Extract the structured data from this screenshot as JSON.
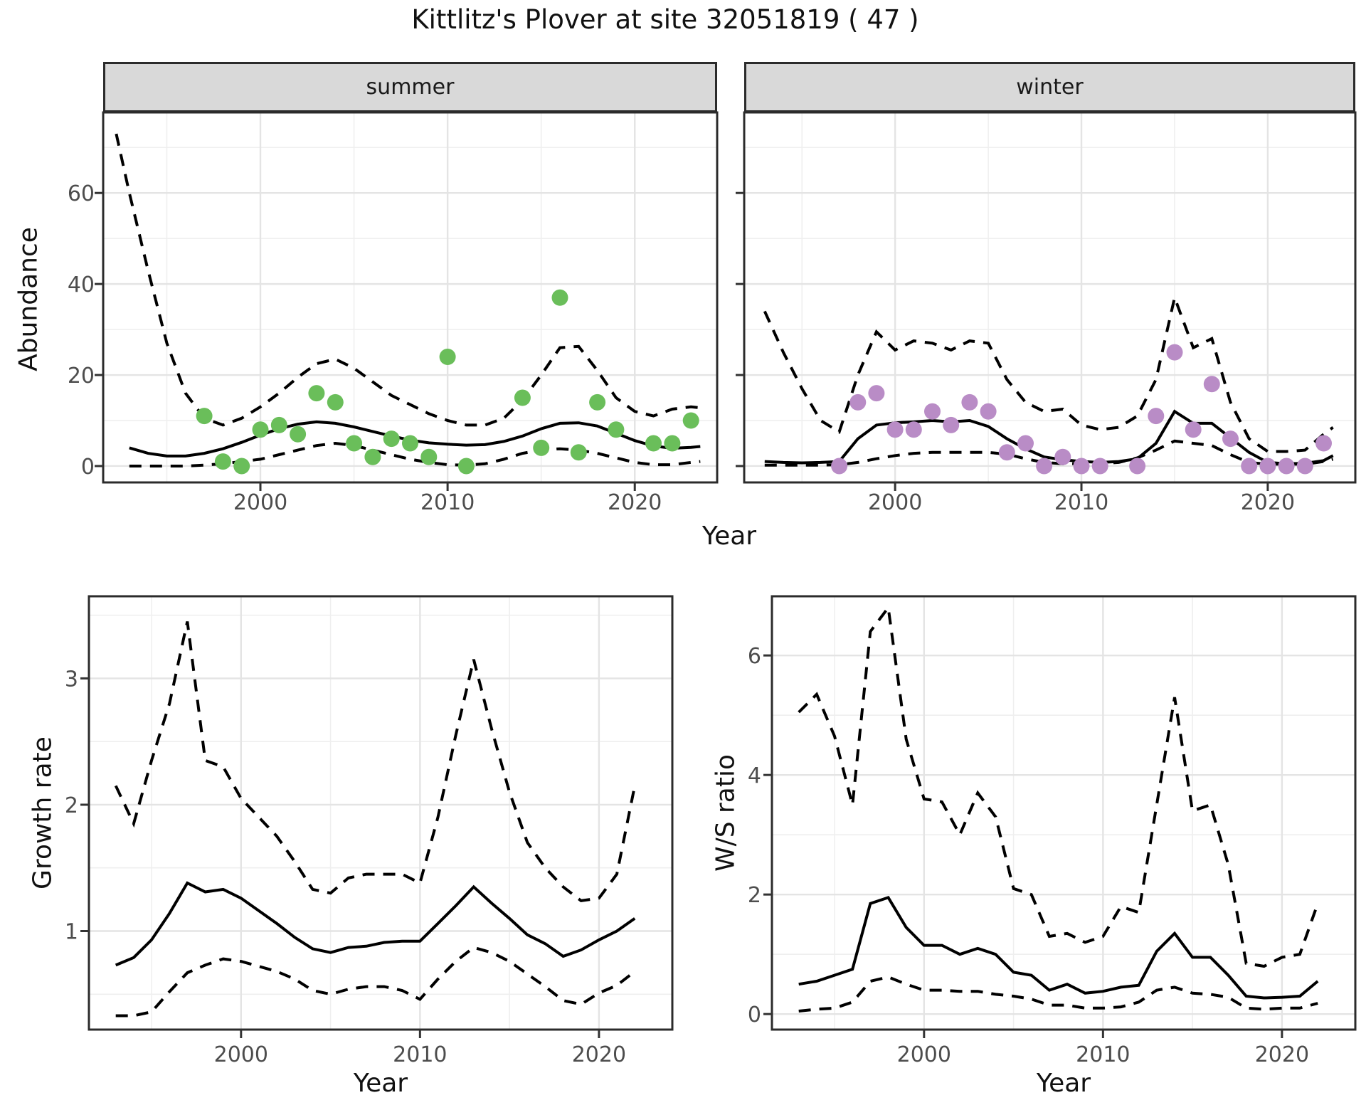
{
  "title": "Kittlitz's Plover at site 32051819 ( 47 )",
  "colors": {
    "summer_point": "#6abe5a",
    "winter_point": "#b98cc6",
    "line": "#000000",
    "grid_major": "#e4e4e4",
    "grid_minor": "#efefef",
    "panel_border": "#2b2b2b",
    "strip_bg": "#d9d9d9",
    "tick_label": "#4d4d4d"
  },
  "chart_data": [
    {
      "id": "abundance-summer",
      "type": "line+scatter",
      "facet_label": "summer",
      "xlabel": "Year",
      "ylabel": "Abundance",
      "xlim": [
        1991.6,
        2024.4
      ],
      "ylim": [
        -3.6,
        77.7
      ],
      "x_ticks": [
        2000,
        2010,
        2020
      ],
      "x_minor": [
        1995,
        2005,
        2015
      ],
      "y_ticks": [
        0,
        20,
        40,
        60
      ],
      "y_minor": [
        10,
        30,
        50,
        70
      ],
      "grid": true,
      "legend": "none",
      "point_color": "#6abe5a",
      "points": {
        "x": [
          1997,
          1998,
          1999,
          2000,
          2001,
          2002,
          2003,
          2004,
          2005,
          2006,
          2007,
          2008,
          2009,
          2010,
          2011,
          2014,
          2015,
          2016,
          2017,
          2018,
          2019,
          2021,
          2022,
          2023
        ],
        "y": [
          11,
          1,
          0,
          8,
          9,
          7,
          16,
          14,
          5,
          2,
          6,
          5,
          2,
          24,
          0,
          15,
          4,
          37,
          3,
          14,
          8,
          5,
          5,
          10
        ]
      },
      "series": [
        {
          "name": "mean",
          "style": "solid",
          "x": [
            1993,
            1994,
            1995,
            1996,
            1997,
            1998,
            1999,
            2000,
            2001,
            2002,
            2003,
            2004,
            2005,
            2006,
            2007,
            2008,
            2009,
            2010,
            2011,
            2012,
            2013,
            2014,
            2015,
            2016,
            2017,
            2018,
            2019,
            2020,
            2021,
            2022,
            2023,
            2023.5
          ],
          "y": [
            4,
            2.8,
            2.2,
            2.2,
            2.8,
            3.8,
            5.2,
            6.8,
            8.2,
            9.2,
            9.7,
            9.4,
            8.6,
            7.6,
            6.6,
            5.7,
            5.1,
            4.8,
            4.6,
            4.7,
            5.4,
            6.6,
            8.2,
            9.4,
            9.5,
            8.8,
            7.2,
            5.6,
            4.4,
            3.9,
            4.1,
            4.3
          ]
        },
        {
          "name": "upper-ci",
          "style": "dashed",
          "x": [
            1992.3,
            1993,
            1994,
            1995,
            1996,
            1997,
            1998,
            1999,
            2000,
            2001,
            2002,
            2003,
            2004,
            2005,
            2006,
            2007,
            2008,
            2009,
            2010,
            2011,
            2012,
            2013,
            2014,
            2015,
            2016,
            2017,
            2018,
            2019,
            2020,
            2021,
            2022,
            2023,
            2023.5
          ],
          "y": [
            73,
            60,
            43,
            27,
            16,
            10.5,
            9,
            10.5,
            13,
            16,
            19.5,
            22.5,
            23.5,
            21.5,
            18.5,
            15.5,
            13.5,
            11.5,
            10,
            9,
            9,
            10.5,
            14.5,
            20,
            26,
            26.3,
            21,
            15,
            12,
            11,
            12.5,
            13,
            12.8
          ]
        },
        {
          "name": "lower-ci",
          "style": "dashed",
          "x": [
            1993,
            1994,
            1995,
            1996,
            1997,
            1998,
            1999,
            2000,
            2001,
            2002,
            2003,
            2004,
            2005,
            2006,
            2007,
            2008,
            2009,
            2010,
            2011,
            2012,
            2013,
            2014,
            2015,
            2016,
            2017,
            2018,
            2019,
            2020,
            2021,
            2022,
            2023,
            2023.5
          ],
          "y": [
            0,
            0,
            0,
            0,
            0.2,
            0.5,
            1,
            1.5,
            2.5,
            3.5,
            4.5,
            5,
            4.5,
            3.5,
            2.5,
            1.5,
            0.8,
            0.3,
            0.2,
            0.5,
            1.5,
            2.8,
            3.5,
            3.8,
            3.5,
            2.8,
            1.8,
            0.8,
            0.3,
            0.3,
            0.8,
            1
          ]
        }
      ]
    },
    {
      "id": "abundance-winter",
      "type": "line+scatter",
      "facet_label": "winter",
      "xlabel": "Year",
      "ylabel": "Abundance",
      "xlim": [
        1991.9,
        2024.7
      ],
      "ylim": [
        -3.6,
        77.7
      ],
      "x_ticks": [
        2000,
        2010,
        2020
      ],
      "x_minor": [
        1995,
        2005,
        2015
      ],
      "y_ticks": [
        0,
        20,
        40,
        60
      ],
      "y_minor": [
        10,
        30,
        50,
        70
      ],
      "grid": true,
      "legend": "none",
      "point_color": "#b98cc6",
      "points": {
        "x": [
          1997,
          1998,
          1999,
          2000,
          2001,
          2002,
          2003,
          2004,
          2005,
          2006,
          2007,
          2008,
          2009,
          2010,
          2011,
          2013,
          2014,
          2015,
          2016,
          2017,
          2018,
          2019,
          2020,
          2021,
          2022,
          2023
        ],
        "y": [
          0,
          14,
          16,
          8,
          8,
          12,
          9,
          14,
          12,
          3,
          5,
          0,
          2,
          0,
          0,
          0,
          11,
          25,
          8,
          18,
          6,
          0,
          0,
          0,
          0,
          5
        ]
      },
      "series": [
        {
          "name": "mean",
          "style": "solid",
          "x": [
            1993,
            1994,
            1995,
            1996,
            1997,
            1998,
            1999,
            2000,
            2001,
            2002,
            2003,
            2004,
            2005,
            2006,
            2007,
            2008,
            2009,
            2010,
            2011,
            2012,
            2013,
            2014,
            2015,
            2016,
            2017,
            2018,
            2019,
            2020,
            2021,
            2022,
            2023,
            2023.5
          ],
          "y": [
            1,
            0.8,
            0.7,
            0.8,
            1,
            6,
            9,
            9.5,
            9.7,
            10,
            9.7,
            10,
            8.7,
            6,
            3.8,
            2,
            1.4,
            1,
            0.8,
            1,
            1.6,
            5,
            12,
            9.4,
            9.4,
            6.2,
            3,
            0.8,
            0.5,
            0.6,
            1.2,
            2.3
          ]
        },
        {
          "name": "upper-ci",
          "style": "dashed",
          "x": [
            1993,
            1994,
            1995,
            1996,
            1997,
            1998,
            1999,
            2000,
            2001,
            2002,
            2003,
            2004,
            2005,
            2006,
            2007,
            2008,
            2009,
            2010,
            2011,
            2012,
            2013,
            2014,
            2015,
            2016,
            2017,
            2018,
            2019,
            2020,
            2021,
            2022,
            2023,
            2023.5
          ],
          "y": [
            34,
            25,
            17,
            10,
            7.5,
            20,
            29.5,
            25.5,
            27.5,
            27,
            25.5,
            27.5,
            27,
            19,
            14,
            12,
            12.5,
            9,
            8,
            8.5,
            11,
            19,
            37,
            26,
            28,
            14,
            6,
            3.2,
            3.2,
            3.5,
            7,
            8.5
          ]
        },
        {
          "name": "lower-ci",
          "style": "dashed",
          "x": [
            1993,
            1994,
            1995,
            1996,
            1997,
            1998,
            1999,
            2000,
            2001,
            2002,
            2003,
            2004,
            2005,
            2006,
            2007,
            2008,
            2009,
            2010,
            2011,
            2012,
            2013,
            2014,
            2015,
            2016,
            2017,
            2018,
            2019,
            2020,
            2021,
            2022,
            2023,
            2023.5
          ],
          "y": [
            0.2,
            0.2,
            0.2,
            0.2,
            0.3,
            0.8,
            1.6,
            2.3,
            2.8,
            3,
            3,
            3,
            3,
            2.6,
            1.6,
            0.8,
            0.5,
            0.5,
            0.5,
            0.8,
            1.8,
            3.5,
            5.5,
            5,
            4.5,
            2.5,
            0.8,
            0.4,
            0.4,
            0.4,
            1,
            1.5
          ]
        }
      ]
    },
    {
      "id": "growth-rate",
      "type": "line",
      "facet_label": "",
      "xlabel": "Year",
      "ylabel": "Growth rate",
      "xlim": [
        1991.5,
        2024.1
      ],
      "ylim": [
        0.22,
        3.65
      ],
      "x_ticks": [
        2000,
        2010,
        2020
      ],
      "x_minor": [
        1995,
        2005,
        2015
      ],
      "y_ticks": [
        1,
        2,
        3
      ],
      "y_minor": [
        0.5,
        1.5,
        2.5,
        3.5
      ],
      "grid": true,
      "legend": "none",
      "series": [
        {
          "name": "mean",
          "style": "solid",
          "x": [
            1993,
            1994,
            1995,
            1996,
            1997,
            1998,
            1999,
            2000,
            2001,
            2002,
            2003,
            2004,
            2005,
            2006,
            2007,
            2008,
            2009,
            2010,
            2011,
            2012,
            2013,
            2014,
            2015,
            2016,
            2017,
            2018,
            2019,
            2020,
            2021,
            2022
          ],
          "y": [
            0.73,
            0.79,
            0.93,
            1.14,
            1.38,
            1.31,
            1.33,
            1.26,
            1.16,
            1.06,
            0.95,
            0.86,
            0.83,
            0.87,
            0.88,
            0.91,
            0.92,
            0.92,
            1.06,
            1.2,
            1.35,
            1.22,
            1.1,
            0.97,
            0.9,
            0.8,
            0.85,
            0.93,
            1.0,
            1.1
          ]
        },
        {
          "name": "upper-ci",
          "style": "dashed",
          "x": [
            1993,
            1994,
            1995,
            1996,
            1997,
            1998,
            1999,
            2000,
            2001,
            2002,
            2003,
            2004,
            2005,
            2006,
            2007,
            2008,
            2009,
            2010,
            2011,
            2012,
            2013,
            2014,
            2015,
            2016,
            2017,
            2018,
            2019,
            2020,
            2021,
            2022
          ],
          "y": [
            2.15,
            1.85,
            2.35,
            2.8,
            3.45,
            2.35,
            2.3,
            2.05,
            1.9,
            1.75,
            1.55,
            1.33,
            1.3,
            1.42,
            1.45,
            1.45,
            1.45,
            1.38,
            1.9,
            2.55,
            3.15,
            2.6,
            2.1,
            1.7,
            1.5,
            1.35,
            1.24,
            1.26,
            1.45,
            2.15
          ]
        },
        {
          "name": "lower-ci",
          "style": "dashed",
          "x": [
            1993,
            1994,
            1995,
            1996,
            1997,
            1998,
            1999,
            2000,
            2001,
            2002,
            2003,
            2004,
            2005,
            2006,
            2007,
            2008,
            2009,
            2010,
            2011,
            2012,
            2013,
            2014,
            2015,
            2016,
            2017,
            2018,
            2019,
            2020,
            2021,
            2022
          ],
          "y": [
            0.33,
            0.33,
            0.36,
            0.52,
            0.67,
            0.73,
            0.78,
            0.76,
            0.72,
            0.68,
            0.62,
            0.53,
            0.5,
            0.54,
            0.56,
            0.56,
            0.53,
            0.46,
            0.62,
            0.76,
            0.87,
            0.83,
            0.76,
            0.66,
            0.56,
            0.45,
            0.42,
            0.51,
            0.57,
            0.68
          ]
        }
      ]
    },
    {
      "id": "ws-ratio",
      "type": "line",
      "facet_label": "",
      "xlabel": "Year",
      "ylabel": "W/S ratio",
      "xlim": [
        1991.5,
        2024.1
      ],
      "ylim": [
        -0.26,
        6.99
      ],
      "x_ticks": [
        2000,
        2010,
        2020
      ],
      "x_minor": [
        1995,
        2005,
        2015
      ],
      "y_ticks": [
        0,
        2,
        4,
        6
      ],
      "y_minor": [
        1,
        3,
        5
      ],
      "grid": true,
      "legend": "none",
      "series": [
        {
          "name": "mean",
          "style": "solid",
          "x": [
            1993,
            1994,
            1995,
            1996,
            1997,
            1998,
            1999,
            2000,
            2001,
            2002,
            2003,
            2004,
            2005,
            2006,
            2007,
            2008,
            2009,
            2010,
            2011,
            2012,
            2013,
            2014,
            2015,
            2016,
            2017,
            2018,
            2019,
            2020,
            2021,
            2022
          ],
          "y": [
            0.5,
            0.55,
            0.65,
            0.75,
            1.85,
            1.95,
            1.45,
            1.15,
            1.15,
            1.0,
            1.1,
            1.0,
            0.7,
            0.65,
            0.4,
            0.5,
            0.35,
            0.38,
            0.45,
            0.48,
            1.05,
            1.35,
            0.95,
            0.95,
            0.65,
            0.3,
            0.27,
            0.28,
            0.3,
            0.55
          ]
        },
        {
          "name": "upper-ci",
          "style": "dashed",
          "x": [
            1993,
            1994,
            1995,
            1996,
            1997,
            1998,
            1999,
            2000,
            2001,
            2002,
            2003,
            2004,
            2005,
            2006,
            2007,
            2008,
            2009,
            2010,
            2011,
            2012,
            2013,
            2014,
            2015,
            2016,
            2017,
            2018,
            2019,
            2020,
            2021,
            2022
          ],
          "y": [
            5.05,
            5.35,
            4.65,
            3.5,
            6.4,
            6.8,
            4.6,
            3.6,
            3.55,
            3.0,
            3.7,
            3.3,
            2.1,
            2.0,
            1.3,
            1.35,
            1.2,
            1.3,
            1.8,
            1.7,
            3.5,
            5.3,
            3.4,
            3.5,
            2.5,
            0.85,
            0.8,
            0.95,
            1.0,
            1.85
          ]
        },
        {
          "name": "lower-ci",
          "style": "dashed",
          "x": [
            1993,
            1994,
            1995,
            1996,
            1997,
            1998,
            1999,
            2000,
            2001,
            2002,
            2003,
            2004,
            2005,
            2006,
            2007,
            2008,
            2009,
            2010,
            2011,
            2012,
            2013,
            2014,
            2015,
            2016,
            2017,
            2018,
            2019,
            2020,
            2021,
            2022
          ],
          "y": [
            0.05,
            0.08,
            0.1,
            0.2,
            0.55,
            0.62,
            0.5,
            0.4,
            0.4,
            0.38,
            0.38,
            0.33,
            0.3,
            0.25,
            0.15,
            0.15,
            0.1,
            0.1,
            0.12,
            0.2,
            0.4,
            0.45,
            0.35,
            0.33,
            0.28,
            0.1,
            0.08,
            0.1,
            0.1,
            0.18
          ]
        }
      ]
    }
  ]
}
